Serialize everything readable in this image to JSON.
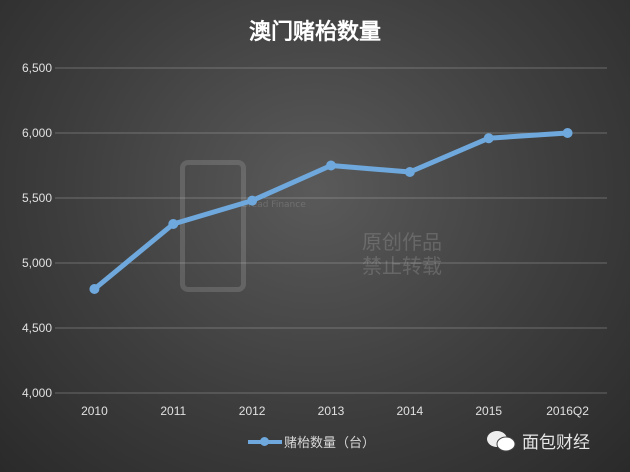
{
  "chart_data": {
    "type": "line",
    "title": "澳门赌枱数量",
    "categories": [
      "2010",
      "2011",
      "2012",
      "2013",
      "2014",
      "2015",
      "2016Q2"
    ],
    "series": [
      {
        "name": "赌枱数量（台）",
        "values": [
          4800,
          5300,
          5480,
          5750,
          5700,
          5960,
          6000
        ],
        "color": "#6fa8dc"
      }
    ],
    "ylim": [
      4000,
      6500
    ],
    "yticks": [
      "4,000",
      "4,500",
      "5,000",
      "5,500",
      "6,000",
      "6,500"
    ],
    "grid": true,
    "legend": "bottom"
  },
  "watermark": {
    "logo": "面包财经",
    "sub": "Bread Finance",
    "line1": "原创作品",
    "line2": "禁止转载"
  },
  "brand": {
    "icon": "wechat-icon",
    "label": "面包财经"
  }
}
